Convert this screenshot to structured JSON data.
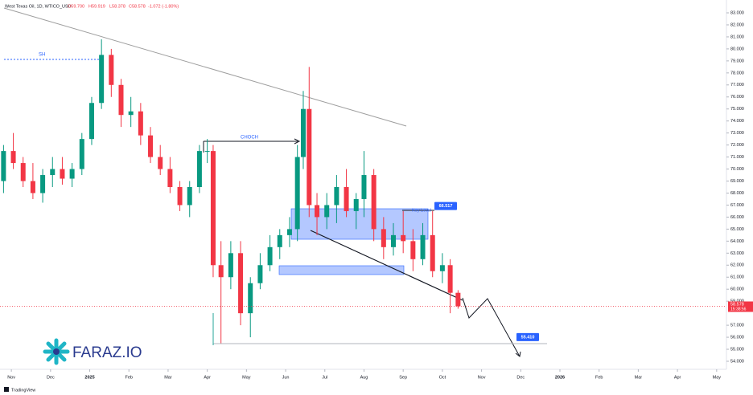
{
  "chart_data": {
    "type": "candlestick",
    "header": {
      "symbol": "West Texas Oil, 1D, WTICO_USD",
      "open": "O59.700",
      "high": "H59.919",
      "low": "L58.378",
      "close": "C58.578",
      "change": "-1.072 (-1.80%)"
    },
    "xlim": [
      -0.29,
      18.25
    ],
    "xticks": [
      {
        "value": 0,
        "label": "Nov"
      },
      {
        "value": 1,
        "label": "Dec"
      },
      {
        "value": 2,
        "label": "2025"
      },
      {
        "value": 3,
        "label": "Feb"
      },
      {
        "value": 4,
        "label": "Mar"
      },
      {
        "value": 5,
        "label": "Apr"
      },
      {
        "value": 6,
        "label": "May"
      },
      {
        "value": 7,
        "label": "Jun"
      },
      {
        "value": 8,
        "label": "Jul"
      },
      {
        "value": 9,
        "label": "Aug"
      },
      {
        "value": 10,
        "label": "Sep"
      },
      {
        "value": 11,
        "label": "Oct"
      },
      {
        "value": 12,
        "label": "Nov"
      },
      {
        "value": 13,
        "label": "Dec"
      },
      {
        "value": 14,
        "label": "2026"
      },
      {
        "value": 15,
        "label": "Feb"
      },
      {
        "value": 16,
        "label": "Mar"
      },
      {
        "value": 17,
        "label": "Apr"
      },
      {
        "value": 18,
        "label": "May"
      }
    ],
    "ylim": [
      54,
      83
    ],
    "yticks": [
      {
        "value": 83,
        "label": "83.000"
      },
      {
        "value": 82,
        "label": "82.000"
      },
      {
        "value": 81,
        "label": "81.000"
      },
      {
        "value": 80,
        "label": "80.000"
      },
      {
        "value": 79,
        "label": "79.000"
      },
      {
        "value": 78,
        "label": "78.000"
      },
      {
        "value": 77,
        "label": "77.000"
      },
      {
        "value": 76,
        "label": "76.000"
      },
      {
        "value": 75,
        "label": "75.000"
      },
      {
        "value": 74,
        "label": "74.000"
      },
      {
        "value": 73,
        "label": "73.000"
      },
      {
        "value": 72,
        "label": "72.000"
      },
      {
        "value": 71,
        "label": "71.000"
      },
      {
        "value": 70,
        "label": "70.000"
      },
      {
        "value": 69,
        "label": "69.000"
      },
      {
        "value": 68,
        "label": "68.000"
      },
      {
        "value": 67,
        "label": "67.000"
      },
      {
        "value": 66,
        "label": "66.000"
      },
      {
        "value": 65,
        "label": "65.000"
      },
      {
        "value": 64,
        "label": "64.000"
      },
      {
        "value": 63,
        "label": "63.000"
      },
      {
        "value": 62,
        "label": "62.000"
      },
      {
        "value": 61,
        "label": "61.000"
      },
      {
        "value": 60,
        "label": "60.000"
      },
      {
        "value": 59,
        "label": "59.000"
      },
      {
        "value": 57,
        "label": "57.000"
      },
      {
        "value": 56,
        "label": "56.000"
      },
      {
        "value": 55,
        "label": "55.000"
      },
      {
        "value": 54,
        "label": "54.000"
      }
    ],
    "up_color": "#089981",
    "down_color": "#f23645",
    "x": [
      -0.2,
      0.05,
      0.3,
      0.55,
      0.8,
      1.05,
      1.3,
      1.55,
      1.8,
      2.05,
      2.3,
      2.55,
      2.8,
      3.05,
      3.3,
      3.55,
      3.8,
      4.05,
      4.3,
      4.55,
      4.8,
      5.0,
      5.15,
      5.35,
      5.6,
      5.85,
      6.1,
      6.35,
      6.6,
      6.85,
      7.1,
      7.3,
      7.45,
      7.6,
      7.8,
      8.05,
      8.3,
      8.55,
      8.8,
      9.0,
      9.25,
      9.5,
      9.75,
      10.0,
      10.25,
      10.5,
      10.75,
      11.0,
      11.2,
      11.4
    ],
    "open": [
      69,
      71.5,
      70.5,
      69,
      68,
      69.5,
      70,
      69.2,
      70,
      72.5,
      75.5,
      79.5,
      77,
      74.5,
      74.8,
      72.8,
      71,
      70,
      68.5,
      67,
      68.5,
      71.5,
      71.5,
      62,
      61,
      63,
      58,
      60.5,
      62,
      63.5,
      64.5,
      65,
      71,
      75,
      67,
      66,
      67,
      68.5,
      66.5,
      67.5,
      69.5,
      65,
      63.5,
      64.5,
      64,
      62.5,
      64.5,
      61.5,
      62,
      59.7
    ],
    "high": [
      72,
      73,
      71,
      70.5,
      70,
      71,
      71,
      70.5,
      73,
      76,
      80.8,
      80,
      77.5,
      76,
      75.5,
      73.5,
      72,
      71,
      69,
      69,
      72,
      72.5,
      72,
      64,
      64,
      64,
      61,
      63,
      64.5,
      65,
      66,
      72,
      76.5,
      78.5,
      68,
      68,
      69.5,
      70,
      68,
      71.5,
      70,
      66,
      65.5,
      66.5,
      65,
      65.5,
      66.5,
      63,
      62.5,
      59.919
    ],
    "low": [
      68,
      70,
      68.5,
      67.5,
      67.2,
      68.5,
      68.7,
      68.5,
      69.5,
      72,
      75,
      76,
      73.5,
      73.5,
      72,
      70.5,
      69.5,
      68,
      66.5,
      66,
      68,
      70.5,
      61,
      55.5,
      60,
      57,
      56,
      60,
      61.5,
      62.5,
      63.5,
      64,
      70,
      66,
      64.5,
      65,
      65.5,
      66,
      65,
      66,
      64,
      62.5,
      62.8,
      63,
      61.5,
      62,
      61,
      60.5,
      58,
      58.378
    ],
    "close": [
      71.5,
      70.5,
      69,
      68,
      69.5,
      70,
      69.2,
      70,
      72.5,
      75.5,
      79.5,
      77,
      74.5,
      74.8,
      72.8,
      71,
      70,
      68.5,
      67,
      68.5,
      71.5,
      71.5,
      62,
      61,
      63,
      58,
      60.5,
      62,
      63.5,
      64.5,
      65,
      71,
      75,
      67,
      66,
      67,
      68.5,
      66.5,
      67.5,
      69.5,
      65,
      63.5,
      64.5,
      64,
      62.5,
      64.5,
      61.5,
      62,
      59.7,
      58.578
    ],
    "last_price": {
      "value": 58.578,
      "label": "58.578",
      "countdown": "15:38:56"
    },
    "annotations": {
      "swing_high": "SH",
      "choch": "CHOCH",
      "key_level": "Key Level",
      "key_level_price": 66.517,
      "target_price": 55.41,
      "target_label": "55.410",
      "key_level_label": "66.517"
    },
    "watermark": "FARAZ.IO",
    "footer": "TradingView"
  }
}
